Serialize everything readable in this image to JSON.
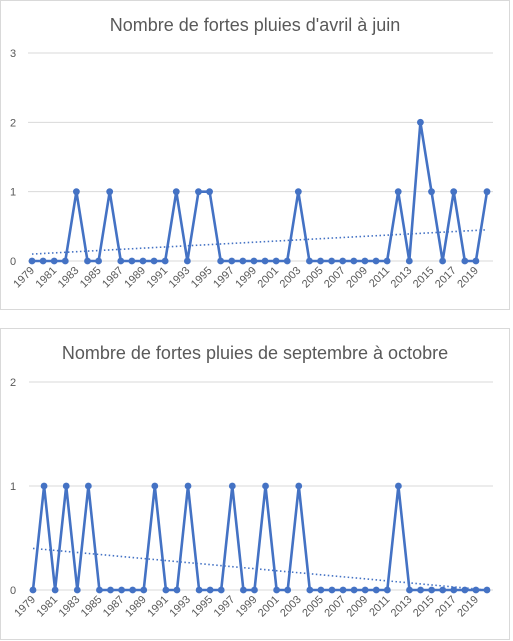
{
  "chart_data": [
    {
      "type": "line",
      "title": "Nombre de fortes pluies d'avril à juin",
      "x": [
        1979,
        1980,
        1981,
        1982,
        1983,
        1984,
        1985,
        1986,
        1987,
        1988,
        1989,
        1990,
        1991,
        1992,
        1993,
        1994,
        1995,
        1996,
        1997,
        1998,
        1999,
        2000,
        2001,
        2002,
        2003,
        2004,
        2005,
        2006,
        2007,
        2008,
        2009,
        2010,
        2011,
        2012,
        2013,
        2014,
        2015,
        2016,
        2017,
        2018,
        2019,
        2020
      ],
      "x_tick_labels": [
        "1979",
        "1981",
        "1983",
        "1985",
        "1987",
        "1989",
        "1991",
        "1993",
        "1995",
        "1997",
        "1999",
        "2001",
        "2003",
        "2005",
        "2007",
        "2009",
        "2011",
        "2013",
        "2015",
        "2017",
        "2019"
      ],
      "values": [
        0,
        0,
        0,
        0,
        1,
        0,
        0,
        1,
        0,
        0,
        0,
        0,
        0,
        1,
        0,
        1,
        1,
        0,
        0,
        0,
        0,
        0,
        0,
        0,
        1,
        0,
        0,
        0,
        0,
        0,
        0,
        0,
        0,
        1,
        0,
        2,
        1,
        0,
        1,
        0,
        0,
        1
      ],
      "trendline": {
        "type": "linear",
        "style": "dotted",
        "start": 0.1,
        "end": 0.45
      },
      "y_ticks": [
        "0",
        "1",
        "2",
        "3"
      ],
      "ylim": [
        0,
        3
      ],
      "grid": true,
      "color": "#4472c4"
    },
    {
      "type": "line",
      "title": "Nombre de fortes pluies de septembre à octobre",
      "x": [
        1979,
        1980,
        1981,
        1982,
        1983,
        1984,
        1985,
        1986,
        1987,
        1988,
        1989,
        1990,
        1991,
        1992,
        1993,
        1994,
        1995,
        1996,
        1997,
        1998,
        1999,
        2000,
        2001,
        2002,
        2003,
        2004,
        2005,
        2006,
        2007,
        2008,
        2009,
        2010,
        2011,
        2012,
        2013,
        2014,
        2015,
        2016,
        2017,
        2018,
        2019,
        2020
      ],
      "x_tick_labels": [
        "1979",
        "1981",
        "1983",
        "1985",
        "1987",
        "1989",
        "1991",
        "1993",
        "1995",
        "1997",
        "1999",
        "2001",
        "2003",
        "2005",
        "2007",
        "2009",
        "2011",
        "2013",
        "2015",
        "2017",
        "2019"
      ],
      "values": [
        0,
        1,
        0,
        1,
        0,
        1,
        0,
        0,
        0,
        0,
        0,
        1,
        0,
        0,
        1,
        0,
        0,
        0,
        1,
        0,
        0,
        1,
        0,
        0,
        1,
        0,
        0,
        0,
        0,
        0,
        0,
        0,
        0,
        1,
        0,
        0,
        0,
        0,
        0,
        0,
        0,
        0
      ],
      "trendline": {
        "type": "linear",
        "style": "dotted",
        "start": 0.4,
        "end": 0.0
      },
      "y_ticks": [
        "0",
        "1",
        "2"
      ],
      "ylim": [
        0,
        2
      ],
      "grid": true,
      "color": "#4472c4"
    }
  ]
}
